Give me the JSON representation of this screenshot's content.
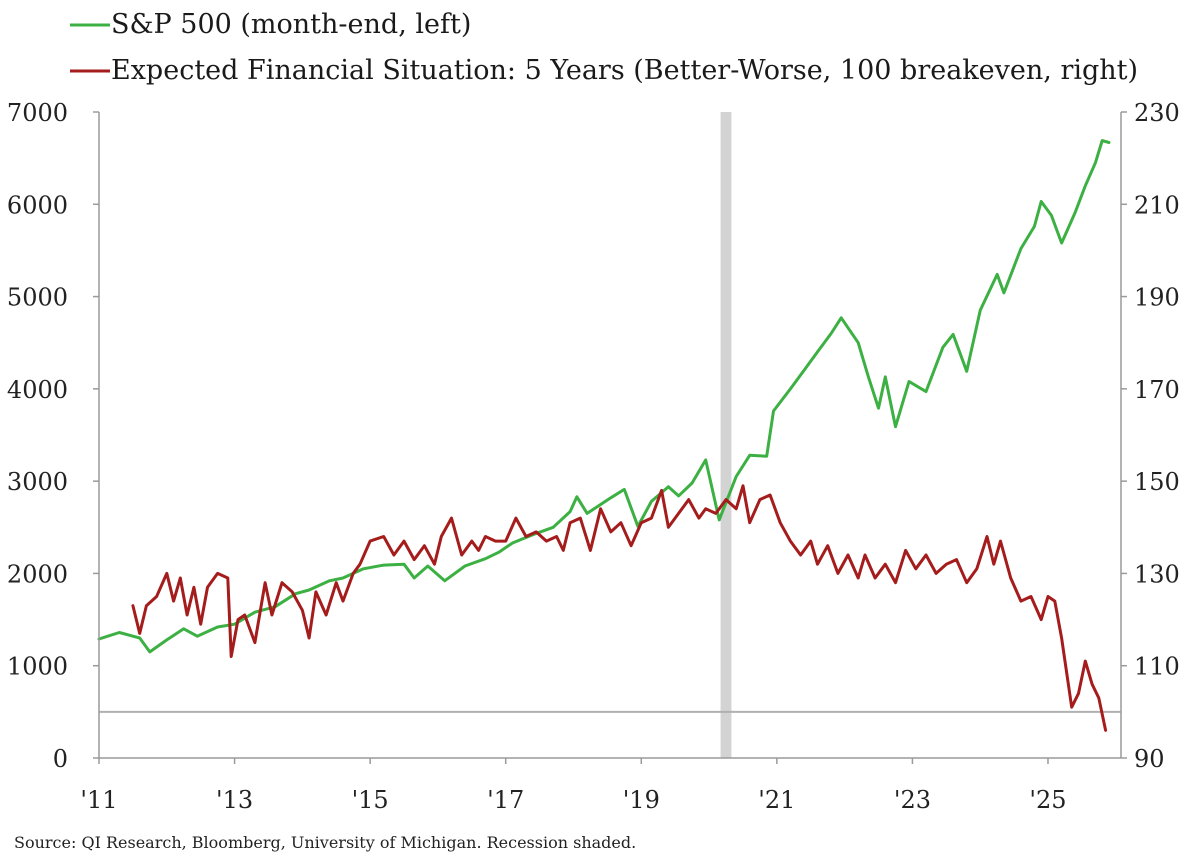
{
  "chart_data": {
    "type": "line",
    "legend": [
      {
        "label": "S&P 500 (month-end, left)",
        "color": "#3cb043",
        "series_index": 0
      },
      {
        "label": "Expected Financial Situation: 5 Years (Better-Worse, 100 breakeven, right)",
        "color": "#a51c1c",
        "series_index": 1
      }
    ],
    "legend_position": "top-left",
    "x_axis": {
      "range": [
        2011.0,
        2025.9
      ],
      "ticks": [
        {
          "value": 2011,
          "label": "'11"
        },
        {
          "value": 2013,
          "label": "'13"
        },
        {
          "value": 2015,
          "label": "'15"
        },
        {
          "value": 2017,
          "label": "'17"
        },
        {
          "value": 2019,
          "label": "'19"
        },
        {
          "value": 2021,
          "label": "'21"
        },
        {
          "value": 2023,
          "label": "'23"
        },
        {
          "value": 2025,
          "label": "'25"
        }
      ]
    },
    "y_left": {
      "range": [
        0,
        7000
      ],
      "ticks": [
        {
          "value": 0,
          "label": "0"
        },
        {
          "value": 1000,
          "label": "1000"
        },
        {
          "value": 2000,
          "label": "2000"
        },
        {
          "value": 3000,
          "label": "3000"
        },
        {
          "value": 4000,
          "label": "4000"
        },
        {
          "value": 5000,
          "label": "5000"
        },
        {
          "value": 6000,
          "label": "6000"
        },
        {
          "value": 7000,
          "label": "7000"
        }
      ]
    },
    "y_right": {
      "range": [
        90,
        230
      ],
      "ticks": [
        {
          "value": 90,
          "label": "90"
        },
        {
          "value": 110,
          "label": "110"
        },
        {
          "value": 130,
          "label": "130"
        },
        {
          "value": 150,
          "label": "150"
        },
        {
          "value": 170,
          "label": "170"
        },
        {
          "value": 190,
          "label": "190"
        },
        {
          "value": 210,
          "label": "210"
        },
        {
          "value": 230,
          "label": "230"
        }
      ]
    },
    "grid": false,
    "recession": {
      "start": 2020.17,
      "end": 2020.33,
      "color": "#d3d3d3"
    },
    "reference_line": {
      "axis": "right",
      "value": 100,
      "color": "#b0b0b0"
    },
    "series": [
      {
        "name": "S&P 500 (month-end, left)",
        "axis": "left",
        "color": "#3cb043",
        "points": [
          [
            2011.0,
            1290
          ],
          [
            2011.3,
            1360
          ],
          [
            2011.6,
            1300
          ],
          [
            2011.75,
            1150
          ],
          [
            2012.0,
            1280
          ],
          [
            2012.25,
            1400
          ],
          [
            2012.45,
            1320
          ],
          [
            2012.75,
            1420
          ],
          [
            2013.0,
            1450
          ],
          [
            2013.3,
            1580
          ],
          [
            2013.6,
            1640
          ],
          [
            2013.9,
            1780
          ],
          [
            2014.1,
            1820
          ],
          [
            2014.4,
            1920
          ],
          [
            2014.6,
            1950
          ],
          [
            2014.9,
            2050
          ],
          [
            2015.2,
            2090
          ],
          [
            2015.5,
            2100
          ],
          [
            2015.65,
            1950
          ],
          [
            2015.85,
            2080
          ],
          [
            2016.1,
            1920
          ],
          [
            2016.4,
            2080
          ],
          [
            2016.7,
            2160
          ],
          [
            2016.9,
            2230
          ],
          [
            2017.1,
            2330
          ],
          [
            2017.4,
            2420
          ],
          [
            2017.7,
            2500
          ],
          [
            2017.95,
            2670
          ],
          [
            2018.05,
            2830
          ],
          [
            2018.2,
            2650
          ],
          [
            2018.55,
            2820
          ],
          [
            2018.75,
            2910
          ],
          [
            2018.95,
            2510
          ],
          [
            2019.15,
            2780
          ],
          [
            2019.4,
            2940
          ],
          [
            2019.55,
            2840
          ],
          [
            2019.75,
            2980
          ],
          [
            2019.95,
            3230
          ],
          [
            2020.15,
            2580
          ],
          [
            2020.4,
            3050
          ],
          [
            2020.6,
            3280
          ],
          [
            2020.85,
            3270
          ],
          [
            2020.95,
            3760
          ],
          [
            2021.2,
            4000
          ],
          [
            2021.4,
            4200
          ],
          [
            2021.6,
            4400
          ],
          [
            2021.8,
            4600
          ],
          [
            2021.95,
            4770
          ],
          [
            2022.2,
            4500
          ],
          [
            2022.35,
            4130
          ],
          [
            2022.5,
            3790
          ],
          [
            2022.6,
            4130
          ],
          [
            2022.75,
            3590
          ],
          [
            2022.95,
            4080
          ],
          [
            2023.2,
            3970
          ],
          [
            2023.45,
            4450
          ],
          [
            2023.6,
            4590
          ],
          [
            2023.8,
            4190
          ],
          [
            2024.0,
            4850
          ],
          [
            2024.25,
            5240
          ],
          [
            2024.35,
            5040
          ],
          [
            2024.6,
            5520
          ],
          [
            2024.8,
            5760
          ],
          [
            2024.9,
            6030
          ],
          [
            2025.05,
            5880
          ],
          [
            2025.2,
            5580
          ],
          [
            2025.4,
            5910
          ],
          [
            2025.55,
            6200
          ],
          [
            2025.7,
            6450
          ],
          [
            2025.8,
            6690
          ],
          [
            2025.9,
            6670
          ]
        ]
      },
      {
        "name": "Expected Financial Situation: 5 Years (Better-Worse, 100 breakeven, right)",
        "axis": "right",
        "color": "#a51c1c",
        "points": [
          [
            2011.5,
            123
          ],
          [
            2011.6,
            117
          ],
          [
            2011.7,
            123
          ],
          [
            2011.85,
            125
          ],
          [
            2012.0,
            130
          ],
          [
            2012.1,
            124
          ],
          [
            2012.2,
            129
          ],
          [
            2012.3,
            121
          ],
          [
            2012.4,
            127
          ],
          [
            2012.5,
            119
          ],
          [
            2012.6,
            127
          ],
          [
            2012.75,
            130
          ],
          [
            2012.9,
            129
          ],
          [
            2012.95,
            112
          ],
          [
            2013.05,
            120
          ],
          [
            2013.15,
            121
          ],
          [
            2013.3,
            115
          ],
          [
            2013.45,
            128
          ],
          [
            2013.55,
            121
          ],
          [
            2013.7,
            128
          ],
          [
            2013.85,
            126
          ],
          [
            2014.0,
            122
          ],
          [
            2014.1,
            116
          ],
          [
            2014.2,
            126
          ],
          [
            2014.35,
            121
          ],
          [
            2014.5,
            128
          ],
          [
            2014.6,
            124
          ],
          [
            2014.75,
            130
          ],
          [
            2014.85,
            132
          ],
          [
            2015.0,
            137
          ],
          [
            2015.2,
            138
          ],
          [
            2015.35,
            134
          ],
          [
            2015.5,
            137
          ],
          [
            2015.65,
            133
          ],
          [
            2015.8,
            136
          ],
          [
            2015.95,
            132
          ],
          [
            2016.05,
            138
          ],
          [
            2016.2,
            142
          ],
          [
            2016.35,
            134
          ],
          [
            2016.5,
            137
          ],
          [
            2016.6,
            135
          ],
          [
            2016.7,
            138
          ],
          [
            2016.85,
            137
          ],
          [
            2017.0,
            137
          ],
          [
            2017.15,
            142
          ],
          [
            2017.3,
            138
          ],
          [
            2017.45,
            139
          ],
          [
            2017.6,
            137
          ],
          [
            2017.75,
            138
          ],
          [
            2017.85,
            135
          ],
          [
            2017.95,
            141
          ],
          [
            2018.1,
            142
          ],
          [
            2018.25,
            135
          ],
          [
            2018.4,
            144
          ],
          [
            2018.55,
            139
          ],
          [
            2018.7,
            141
          ],
          [
            2018.85,
            136
          ],
          [
            2019.0,
            141
          ],
          [
            2019.15,
            142
          ],
          [
            2019.3,
            148
          ],
          [
            2019.4,
            140
          ],
          [
            2019.55,
            143
          ],
          [
            2019.7,
            146
          ],
          [
            2019.85,
            142
          ],
          [
            2019.95,
            144
          ],
          [
            2020.1,
            143
          ],
          [
            2020.25,
            146
          ],
          [
            2020.4,
            144
          ],
          [
            2020.5,
            149
          ],
          [
            2020.6,
            141
          ],
          [
            2020.75,
            146
          ],
          [
            2020.9,
            147
          ],
          [
            2021.05,
            141
          ],
          [
            2021.2,
            137
          ],
          [
            2021.35,
            134
          ],
          [
            2021.5,
            137
          ],
          [
            2021.6,
            132
          ],
          [
            2021.75,
            136
          ],
          [
            2021.9,
            130
          ],
          [
            2022.05,
            134
          ],
          [
            2022.2,
            129
          ],
          [
            2022.3,
            134
          ],
          [
            2022.45,
            129
          ],
          [
            2022.6,
            132
          ],
          [
            2022.75,
            128
          ],
          [
            2022.9,
            135
          ],
          [
            2023.05,
            131
          ],
          [
            2023.2,
            134
          ],
          [
            2023.35,
            130
          ],
          [
            2023.5,
            132
          ],
          [
            2023.65,
            133
          ],
          [
            2023.8,
            128
          ],
          [
            2023.95,
            131
          ],
          [
            2024.1,
            138
          ],
          [
            2024.2,
            132
          ],
          [
            2024.3,
            137
          ],
          [
            2024.45,
            129
          ],
          [
            2024.6,
            124
          ],
          [
            2024.75,
            125
          ],
          [
            2024.9,
            120
          ],
          [
            2025.0,
            125
          ],
          [
            2025.1,
            124
          ],
          [
            2025.2,
            116
          ],
          [
            2025.35,
            101
          ],
          [
            2025.45,
            104
          ],
          [
            2025.55,
            111
          ],
          [
            2025.65,
            106
          ],
          [
            2025.75,
            103
          ],
          [
            2025.85,
            96
          ]
        ]
      }
    ]
  },
  "source_note": "Source: QI Research, Bloomberg, University of Michigan. Recession shaded."
}
